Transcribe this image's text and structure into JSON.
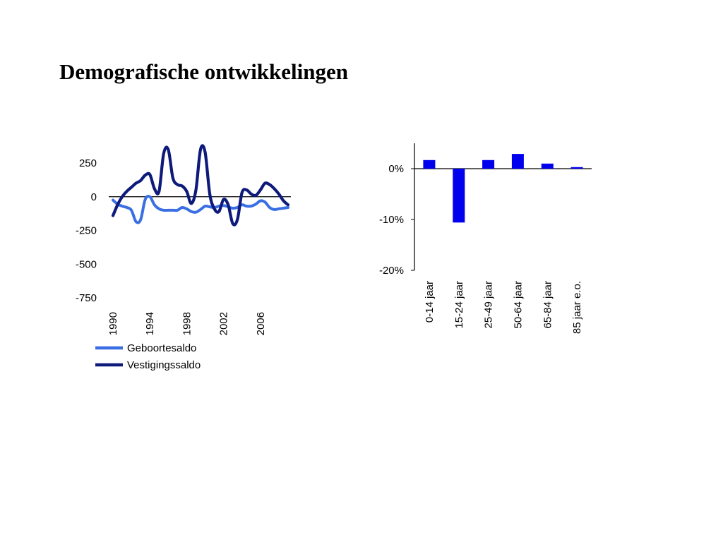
{
  "slide": {
    "title": "Demografische ontwikkelingen"
  },
  "chart_data": [
    {
      "type": "line",
      "title": "",
      "xlabel": "",
      "ylabel": "",
      "xlim": [
        1990,
        2009
      ],
      "ylim": [
        -750,
        250
      ],
      "yticks": [
        250,
        0,
        -250,
        -500,
        -750
      ],
      "xticks": [
        1990,
        1994,
        1998,
        2002,
        2006
      ],
      "ytick_labels": [
        "250",
        "0",
        "-250",
        "-500",
        "-750"
      ],
      "xtick_labels": [
        "1990",
        "1994",
        "1998",
        "2002",
        "2006"
      ],
      "legend_position": "bottom",
      "series": [
        {
          "name": "Geboortesaldo",
          "color": "#3a6fe4",
          "x": [
            1990,
            1990.5,
            1991,
            1991.5,
            1992,
            1992.5,
            1993,
            1993.5,
            1994,
            1994.5,
            1995,
            1995.5,
            1996,
            1996.5,
            1997,
            1997.5,
            1998,
            1998.5,
            1999,
            1999.5,
            2000,
            2000.5,
            2001,
            2001.5,
            2002,
            2002.5,
            2003,
            2003.5,
            2004,
            2004.5,
            2005,
            2005.5,
            2006,
            2006.5,
            2007,
            2007.5,
            2008,
            2008.5,
            2009
          ],
          "y": [
            -25,
            -55,
            -70,
            -80,
            -100,
            -185,
            -170,
            -20,
            0,
            -60,
            -90,
            -100,
            -100,
            -100,
            -100,
            -80,
            -90,
            -110,
            -115,
            -95,
            -70,
            -75,
            -80,
            -70,
            -65,
            -75,
            -85,
            -80,
            -60,
            -70,
            -70,
            -55,
            -30,
            -40,
            -80,
            -95,
            -90,
            -85,
            -80
          ]
        },
        {
          "name": "Vestigingssaldo",
          "color": "#0d1a7a",
          "x": [
            1990,
            1990.5,
            1991,
            1991.5,
            1992,
            1992.5,
            1993,
            1993.5,
            1994,
            1994.5,
            1995,
            1995.5,
            1996,
            1996.5,
            1997,
            1997.5,
            1998,
            1998.5,
            1999,
            1999.5,
            2000,
            2000.5,
            2001,
            2001.5,
            2002,
            2002.5,
            2003,
            2003.5,
            2004,
            2004.5,
            2005,
            2005.5,
            2006,
            2006.5,
            2007,
            2007.5,
            2008,
            2008.5,
            2009
          ],
          "y": [
            -140,
            -60,
            0,
            40,
            70,
            100,
            120,
            160,
            165,
            60,
            40,
            320,
            350,
            140,
            90,
            80,
            40,
            -50,
            50,
            350,
            330,
            20,
            -90,
            -110,
            -20,
            -60,
            -200,
            -170,
            30,
            50,
            20,
            10,
            50,
            100,
            90,
            60,
            20,
            -30,
            -60
          ]
        }
      ]
    },
    {
      "type": "bar",
      "title": "",
      "xlabel": "",
      "ylabel": "",
      "categories": [
        "0-14 jaar",
        "15-24 jaar",
        "25-49 jaar",
        "50-64 jaar",
        "65-84 jaar",
        "85 jaar e.o."
      ],
      "values": [
        1.7,
        -10.6,
        1.7,
        2.9,
        1.0,
        0.3
      ],
      "ylim": [
        -20,
        5
      ],
      "yticks": [
        0,
        -10,
        -20
      ],
      "ytick_labels": [
        "0%",
        "-10%",
        "-20%"
      ],
      "bar_color": "#0000ee"
    }
  ]
}
